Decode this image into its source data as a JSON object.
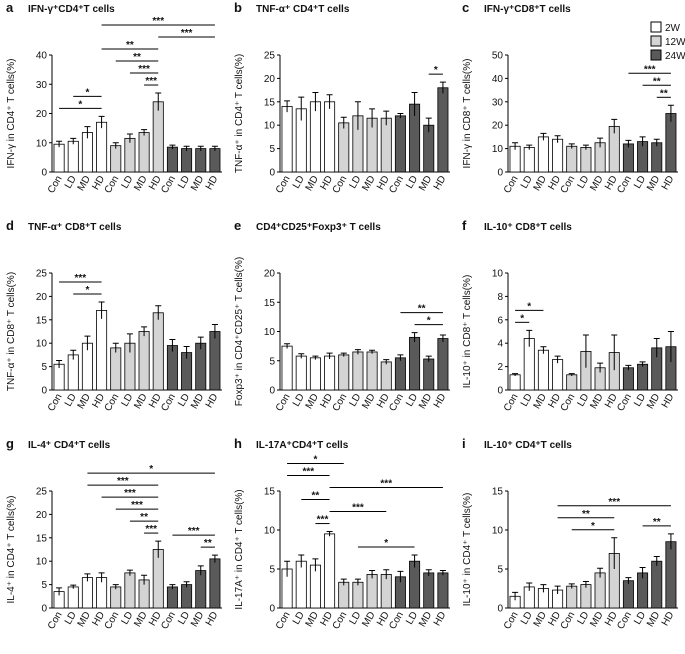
{
  "legend": [
    {
      "name": "2W",
      "color": "#ffffff"
    },
    {
      "name": "12W",
      "color": "#d4d4d4"
    },
    {
      "name": "24W",
      "color": "#5a5a5a"
    }
  ],
  "chart_data": [
    {
      "type": "bar",
      "letter": "a",
      "title": "IFN-γ⁺CD4⁺T cells",
      "ylabel": "IFN-γ in CD4⁺ T cells(%)",
      "categories": [
        "Con",
        "LD",
        "MD",
        "HD"
      ],
      "ylim": [
        0,
        40
      ],
      "yticks": [
        0,
        10,
        20,
        30,
        40
      ],
      "show_legend": false,
      "groups": [
        {
          "values": [
            9.5,
            10.5,
            13.5,
            17
          ],
          "errors": [
            1,
            1,
            2,
            2
          ]
        },
        {
          "values": [
            9,
            11.5,
            13.5,
            24
          ],
          "errors": [
            1,
            1.5,
            1,
            3
          ]
        },
        {
          "values": [
            8.5,
            8,
            8,
            8
          ],
          "errors": [
            0.7,
            0.8,
            0.8,
            0.8
          ]
        }
      ],
      "brackets": [
        {
          "from": 0,
          "to": 3,
          "label": "*"
        },
        {
          "from": 1,
          "to": 3,
          "label": "*"
        },
        {
          "from": 6,
          "to": 7,
          "label": "***"
        },
        {
          "from": 5,
          "to": 7,
          "label": "***"
        },
        {
          "from": 4,
          "to": 7,
          "label": "**"
        },
        {
          "from": 3,
          "to": 7,
          "label": "**"
        },
        {
          "from": 7,
          "to": 11,
          "label": "***"
        },
        {
          "from": 3,
          "to": 11,
          "label": "***"
        }
      ]
    },
    {
      "type": "bar",
      "letter": "b",
      "title": "TNF-α⁺ CD4⁺T cells",
      "ylabel": "TNF-α⁺ in CD4⁺ T cells(%)",
      "categories": [
        "Con",
        "LD",
        "MD",
        "HD"
      ],
      "ylim": [
        0,
        25
      ],
      "yticks": [
        0,
        5,
        10,
        15,
        20,
        25
      ],
      "show_legend": false,
      "groups": [
        {
          "values": [
            14,
            13.5,
            15,
            15
          ],
          "errors": [
            1.2,
            2.5,
            2,
            1.5
          ]
        },
        {
          "values": [
            10.5,
            12,
            11.5,
            11.5
          ],
          "errors": [
            1.2,
            3,
            2,
            1.5
          ]
        },
        {
          "values": [
            12,
            14.5,
            10,
            18
          ],
          "errors": [
            0.5,
            2.5,
            1.5,
            1.2
          ]
        }
      ],
      "brackets": [
        {
          "from": 10,
          "to": 11,
          "label": "*"
        }
      ]
    },
    {
      "type": "bar",
      "letter": "c",
      "title": "IFN-γ⁺CD8⁺T cells",
      "ylabel": "IFN-γ in CD8⁺ T cells(%)",
      "categories": [
        "Con",
        "LD",
        "MD",
        "HD"
      ],
      "ylim": [
        0,
        50
      ],
      "yticks": [
        0,
        10,
        20,
        30,
        40,
        50
      ],
      "show_legend": true,
      "groups": [
        {
          "values": [
            11,
            10.5,
            15,
            14
          ],
          "errors": [
            1.5,
            1,
            1.5,
            1.5
          ]
        },
        {
          "values": [
            11,
            10.5,
            12.5,
            19.5
          ],
          "errors": [
            1,
            1,
            2,
            3
          ]
        },
        {
          "values": [
            12,
            13,
            12.5,
            25
          ],
          "errors": [
            1.5,
            2,
            1.5,
            3.5
          ]
        }
      ],
      "brackets": [
        {
          "from": 10,
          "to": 11,
          "label": "**"
        },
        {
          "from": 9,
          "to": 11,
          "label": "**"
        },
        {
          "from": 8,
          "to": 11,
          "label": "***"
        }
      ]
    },
    {
      "type": "bar",
      "letter": "d",
      "title": "TNF-α⁺ CD8⁺T cells",
      "ylabel": "TNF-α⁺ in CD8⁺ T cells(%)",
      "categories": [
        "Con",
        "LD",
        "MD",
        "HD"
      ],
      "ylim": [
        0,
        25
      ],
      "yticks": [
        0,
        5,
        10,
        15,
        20,
        25
      ],
      "show_legend": false,
      "groups": [
        {
          "values": [
            5.5,
            7.5,
            10,
            17
          ],
          "errors": [
            0.8,
            1,
            1.5,
            1.8
          ]
        },
        {
          "values": [
            9,
            10,
            12.5,
            16.5
          ],
          "errors": [
            1,
            2,
            1,
            1.5
          ]
        },
        {
          "values": [
            9.5,
            8,
            10,
            12.5
          ],
          "errors": [
            1.3,
            1.3,
            1.3,
            1.5
          ]
        }
      ],
      "brackets": [
        {
          "from": 1,
          "to": 3,
          "label": "*"
        },
        {
          "from": 0,
          "to": 3,
          "label": "***"
        }
      ]
    },
    {
      "type": "bar",
      "letter": "e",
      "title": "CD4⁺CD25⁺Foxp3⁺ T cells",
      "ylabel": "Foxp3⁺ in CD4⁺CD25⁺ T cells(%)",
      "categories": [
        "Con",
        "LD",
        "MD",
        "HD"
      ],
      "ylim": [
        0,
        20
      ],
      "yticks": [
        0,
        5,
        10,
        15,
        20
      ],
      "show_legend": false,
      "groups": [
        {
          "values": [
            7.5,
            5.8,
            5.5,
            5.8
          ],
          "errors": [
            0.4,
            0.4,
            0.3,
            0.5
          ]
        },
        {
          "values": [
            6,
            6.5,
            6.5,
            4.8
          ],
          "errors": [
            0.3,
            0.4,
            0.3,
            0.4
          ]
        },
        {
          "values": [
            5.5,
            9,
            5.3,
            8.8
          ],
          "errors": [
            0.5,
            0.8,
            0.5,
            0.6
          ]
        }
      ],
      "brackets": [
        {
          "from": 9,
          "to": 11,
          "label": "*"
        },
        {
          "from": 8,
          "to": 11,
          "label": "**"
        }
      ]
    },
    {
      "type": "bar",
      "letter": "f",
      "title": "IL-10⁺ CD8⁺T cells",
      "ylabel": "IL-10⁺ in CD8⁺ T cells(%)",
      "categories": [
        "Con",
        "LD",
        "MD",
        "HD"
      ],
      "ylim": [
        0,
        10
      ],
      "yticks": [
        0,
        2,
        4,
        6,
        8,
        10
      ],
      "show_legend": false,
      "groups": [
        {
          "values": [
            1.3,
            4.4,
            3.4,
            2.6
          ],
          "errors": [
            0.1,
            0.7,
            0.3,
            0.3
          ]
        },
        {
          "values": [
            1.3,
            3.3,
            1.9,
            3.2
          ],
          "errors": [
            0.1,
            1.4,
            0.4,
            1.5
          ]
        },
        {
          "values": [
            1.9,
            2.2,
            3.6,
            3.7
          ],
          "errors": [
            0.2,
            0.2,
            0.8,
            1.3
          ]
        }
      ],
      "brackets": [
        {
          "from": 0,
          "to": 1,
          "label": "*"
        },
        {
          "from": 0,
          "to": 2,
          "label": "*"
        }
      ]
    },
    {
      "type": "bar",
      "letter": "g",
      "title": "IL-4⁺ CD4⁺T cells",
      "ylabel": "IL-4⁺ in CD4⁺ T cells(%)",
      "categories": [
        "Con",
        "LD",
        "MD",
        "HD"
      ],
      "ylim": [
        0,
        25
      ],
      "yticks": [
        0,
        5,
        10,
        15,
        20,
        25
      ],
      "show_legend": false,
      "groups": [
        {
          "values": [
            3.5,
            4.5,
            6.5,
            6.5
          ],
          "errors": [
            0.8,
            0.4,
            0.8,
            1
          ]
        },
        {
          "values": [
            4.5,
            7.5,
            6,
            12.5
          ],
          "errors": [
            0.5,
            0.6,
            1,
            1.8
          ]
        },
        {
          "values": [
            4.5,
            5,
            8,
            10.5
          ],
          "errors": [
            0.5,
            0.6,
            1,
            0.8
          ]
        }
      ],
      "brackets": [
        {
          "from": 6,
          "to": 7,
          "label": "***"
        },
        {
          "from": 5,
          "to": 7,
          "label": "**"
        },
        {
          "from": 4,
          "to": 7,
          "label": "***"
        },
        {
          "from": 3,
          "to": 7,
          "label": "***"
        },
        {
          "from": 2,
          "to": 7,
          "label": "***"
        },
        {
          "from": 10,
          "to": 11,
          "label": "**"
        },
        {
          "from": 8,
          "to": 11,
          "label": "***"
        },
        {
          "from": 2,
          "to": 11,
          "label": "*"
        }
      ]
    },
    {
      "type": "bar",
      "letter": "h",
      "title": "IL-17A⁺CD4⁺T cells",
      "ylabel": "IL-17A⁺ in CD4⁺ T cells(%)",
      "categories": [
        "Con",
        "LD",
        "MD",
        "HD"
      ],
      "ylim": [
        0,
        15
      ],
      "yticks": [
        0,
        5,
        10,
        15
      ],
      "show_legend": false,
      "groups": [
        {
          "values": [
            5,
            6,
            5.5,
            9.5
          ],
          "errors": [
            1,
            0.8,
            0.8,
            0.3
          ]
        },
        {
          "values": [
            3.3,
            3.3,
            4.3,
            4.3
          ],
          "errors": [
            0.4,
            0.4,
            0.5,
            0.6
          ]
        },
        {
          "values": [
            4,
            6,
            4.5,
            4.5
          ],
          "errors": [
            0.7,
            0.8,
            0.4,
            0.3
          ]
        }
      ],
      "brackets": [
        {
          "from": 2,
          "to": 3,
          "label": "***"
        },
        {
          "from": 5,
          "to": 9,
          "label": "*"
        },
        {
          "from": 3,
          "to": 7,
          "label": "***"
        },
        {
          "from": 1,
          "to": 3,
          "label": "**"
        },
        {
          "from": 3,
          "to": 11,
          "label": "***"
        },
        {
          "from": 0,
          "to": 3,
          "label": "***"
        },
        {
          "from": 0,
          "to": 4,
          "label": "*"
        }
      ]
    },
    {
      "type": "bar",
      "letter": "i",
      "title": "IL-10⁺ CD4⁺T cells",
      "ylabel": "IL-10⁺ in CD4⁺ T cells(%)",
      "categories": [
        "Con",
        "LD",
        "MD",
        "HD"
      ],
      "ylim": [
        0,
        15
      ],
      "yticks": [
        0,
        5,
        10,
        15
      ],
      "show_legend": false,
      "groups": [
        {
          "values": [
            1.5,
            2.7,
            2.5,
            2.3
          ],
          "errors": [
            0.5,
            0.5,
            0.5,
            0.5
          ]
        },
        {
          "values": [
            2.8,
            3,
            4.5,
            7
          ],
          "errors": [
            0.3,
            0.4,
            0.6,
            2
          ]
        },
        {
          "values": [
            3.5,
            4.5,
            6,
            8.5
          ],
          "errors": [
            0.4,
            0.7,
            0.6,
            1
          ]
        }
      ],
      "brackets": [
        {
          "from": 4,
          "to": 7,
          "label": "*"
        },
        {
          "from": 9,
          "to": 11,
          "label": "**"
        },
        {
          "from": 3,
          "to": 7,
          "label": "**"
        },
        {
          "from": 3,
          "to": 11,
          "label": "***"
        }
      ]
    }
  ]
}
